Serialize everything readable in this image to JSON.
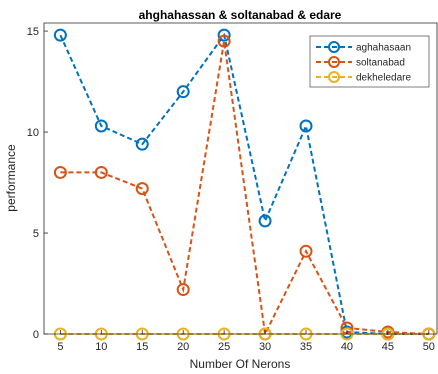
{
  "chart_data": {
    "type": "line",
    "title": "ahghahassan & soltanabad & edare",
    "xlabel": "Number Of Nerons",
    "ylabel": "performance",
    "x": [
      5,
      10,
      15,
      20,
      25,
      30,
      35,
      40,
      45,
      50
    ],
    "xticks": [
      "5",
      "10",
      "15",
      "20",
      "25",
      "30",
      "35",
      "40",
      "45",
      "50"
    ],
    "yticks": [
      "0",
      "5",
      "10",
      "15"
    ],
    "xlim": [
      3,
      51
    ],
    "ylim": [
      0,
      15.4
    ],
    "grid": false,
    "legend_position": "top-right",
    "series": [
      {
        "name": "aghahasaan",
        "color": "#0072BD",
        "values": [
          14.8,
          10.3,
          9.4,
          12.0,
          14.8,
          5.6,
          10.3,
          0.1,
          0.0,
          0.0
        ]
      },
      {
        "name": "soltanabad",
        "color": "#D95319",
        "values": [
          8.0,
          8.0,
          7.2,
          2.2,
          14.5,
          0.0,
          4.1,
          0.3,
          0.1,
          0.0
        ]
      },
      {
        "name": "dekheledare",
        "color": "#EDB120",
        "values": [
          0,
          0,
          0,
          0,
          0,
          0,
          0,
          0,
          0,
          0
        ]
      }
    ]
  }
}
